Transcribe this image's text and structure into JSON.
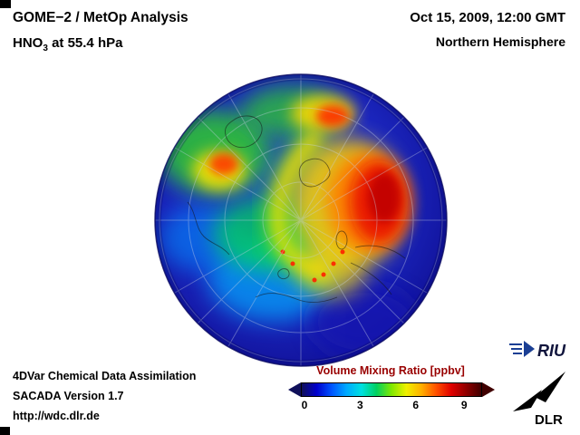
{
  "header": {
    "title_line1": "GOME−2 / MetOp Analysis",
    "title2_prefix": "HNO",
    "title2_sub": "3",
    "title2_suffix": " at 55.4 hPa",
    "datetime": "Oct 15, 2009, 12:00 GMT",
    "region": "Northern Hemisphere"
  },
  "footer": {
    "line1": "4DVar Chemical Data Assimilation",
    "line2": "SACADA Version 1.7",
    "line3": "http://wdc.dlr.de"
  },
  "colorbar": {
    "title": "Volume Mixing Ratio [ppbv]",
    "title_color": "#990000",
    "ticks": [
      "0",
      "3",
      "6",
      "9"
    ]
  },
  "logos": {
    "riu_text": "RIU",
    "dlr_text": "DLR"
  },
  "chart_data": {
    "type": "heatmap",
    "title": "GOME−2 / MetOp Analysis — HNO3 at 55.4 hPa",
    "region": "Northern Hemisphere",
    "timestamp": "Oct 15, 2009, 12:00 GMT",
    "variable": "HNO3 Volume Mixing Ratio",
    "units": "ppbv",
    "projection": "orthographic-north-polar",
    "colorbar_ticks": [
      0,
      3,
      6,
      9
    ],
    "tick_positions_pct": [
      2,
      33,
      64,
      91
    ],
    "colorbar_colors": [
      "#10105a",
      "#0000cd",
      "#0055ff",
      "#00aaff",
      "#00e0e0",
      "#00d060",
      "#80e800",
      "#f0f000",
      "#ffb000",
      "#ff5000",
      "#e00000",
      "#900000",
      "#400000"
    ],
    "field_description": "High HNO3 (6-10 ppbv, red/orange) band over northern Europe/western Russia extending toward the pole; secondary maxima over northeastern Canada and central Siberia; moderate values (green, 3-5 ppbv) in a spiral arc across the Atlantic and central Arctic; low values (blue, 0-2 ppbv) over the subtropics and outer disc"
  }
}
